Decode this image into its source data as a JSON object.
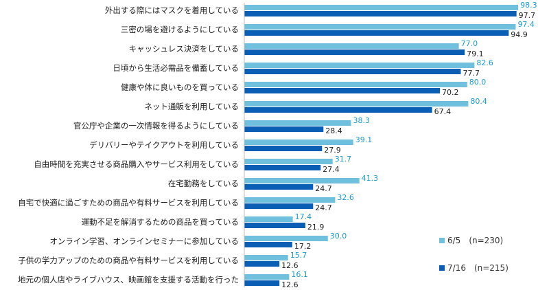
{
  "chart_data": {
    "type": "bar",
    "orientation": "horizontal",
    "title": "",
    "xlabel": "",
    "ylabel": "",
    "xlim": [
      0,
      100
    ],
    "grid": false,
    "legend_position": "bottom-right",
    "categories": [
      "外出する際にはマスクを着用している",
      "三密の場を避けるようにしている",
      "キャッシュレス決済をしている",
      "日頃から生活必需品を備蓄している",
      "健康や体に良いものを買っている",
      "ネット通販を利用している",
      "官公庁や企業の一次情報を得るようにしている",
      "デリバリーやテイクアウトを利用している",
      "自由時間を充実させる商品購入やサービス利用をしている",
      "在宅勤務をしている",
      "自宅で快適に過ごすための商品や有料サービスを利用している",
      "運動不足を解消するための商品を買っている",
      "オンライン学習、オンラインセミナーに参加している",
      "子供の学力アップのための商品や有料サービスを利用している",
      "地元の個人店やライブハウス、映画館を支援する活動を行った"
    ],
    "series": [
      {
        "name": "6/5　(n=230)",
        "color": "#6fc0dc",
        "label_color": "#1a9bd0",
        "values": [
          98.3,
          97.4,
          77.0,
          82.6,
          80.0,
          80.4,
          38.3,
          39.1,
          31.7,
          41.3,
          32.6,
          17.4,
          30.0,
          15.7,
          16.1
        ],
        "value_labels": [
          "98.3",
          "97.4",
          "77.0",
          "82.6",
          "80.0",
          "80.4",
          "38.3",
          "39.1",
          "31.7",
          "41.3",
          "32.6",
          "17.4",
          "30.0",
          "15.7",
          "16.1"
        ]
      },
      {
        "name": "7/16　(n=215)",
        "color": "#0a5fb5",
        "label_color": "#222222",
        "values": [
          97.7,
          94.9,
          79.1,
          77.7,
          70.2,
          67.4,
          28.4,
          27.9,
          27.4,
          24.7,
          24.7,
          21.9,
          17.2,
          12.6,
          12.6
        ],
        "value_labels": [
          "97.7",
          "94.9",
          "79.1",
          "77.7",
          "70.2",
          "67.4",
          "28.4",
          "27.9",
          "27.4",
          "24.7",
          "24.7",
          "21.9",
          "17.2",
          "12.6",
          "12.6"
        ]
      }
    ]
  }
}
